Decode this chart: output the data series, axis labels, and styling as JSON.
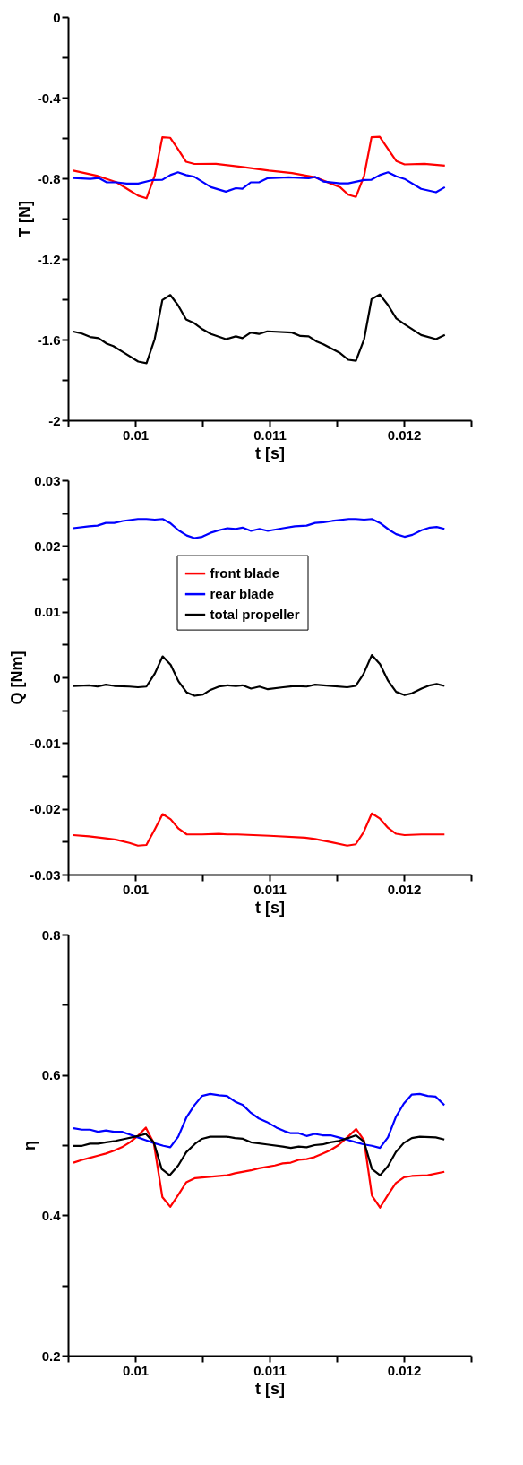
{
  "chart_data": [
    {
      "type": "line",
      "xlabel": "t [s]",
      "ylabel": "T [N]",
      "grid": false,
      "legend": false,
      "line_style": "solid",
      "xlim": [
        0.0095,
        0.0125
      ],
      "xticks": [
        {
          "value": 0.0095,
          "label": null
        },
        0.01,
        {
          "value": 0.0105,
          "label": null
        },
        0.011,
        {
          "value": 0.0115,
          "label": null
        },
        0.012,
        {
          "value": 0.0125,
          "label": null
        }
      ],
      "ylim": [
        -2,
        0
      ],
      "yticks": [
        -2,
        {
          "value": -1.8,
          "label": null
        },
        -1.6,
        {
          "value": -1.4,
          "label": null
        },
        -1.2,
        {
          "value": -1.0,
          "label": null
        },
        -0.8,
        {
          "value": -0.6,
          "label": null
        },
        -0.4,
        {
          "value": -0.2,
          "label": null
        },
        0
      ],
      "series": [
        {
          "color": "#ff0000",
          "x": [
            0.009539,
            0.009714,
            0.009862,
            0.009961,
            0.010022,
            0.010084,
            0.010145,
            0.010202,
            0.010261,
            0.010318,
            0.010379,
            0.010441,
            0.010601,
            0.010798,
            0.010995,
            0.011167,
            0.01134,
            0.011525,
            0.011586,
            0.011643,
            0.011704,
            0.011759,
            0.01182,
            0.011882,
            0.011943,
            0.012005,
            0.012153,
            0.012305
          ],
          "values": [
            -0.762,
            -0.787,
            -0.82,
            -0.861,
            -0.886,
            -0.899,
            -0.787,
            -0.596,
            -0.599,
            -0.655,
            -0.718,
            -0.729,
            -0.728,
            -0.744,
            -0.762,
            -0.774,
            -0.795,
            -0.844,
            -0.881,
            -0.892,
            -0.787,
            -0.596,
            -0.594,
            -0.655,
            -0.714,
            -0.731,
            -0.728,
            -0.737
          ]
        },
        {
          "color": "#0000ff",
          "x": [
            0.009539,
            0.009665,
            0.009727,
            0.009788,
            0.009862,
            0.009936,
            0.010022,
            0.010133,
            0.010202,
            0.010261,
            0.010318,
            0.010379,
            0.010441,
            0.010564,
            0.010675,
            0.010749,
            0.010798,
            0.01086,
            0.010921,
            0.010983,
            0.011143,
            0.011291,
            0.01134,
            0.011401,
            0.011525,
            0.011586,
            0.011648,
            0.011704,
            0.011759,
            0.01182,
            0.011882,
            0.011943,
            0.012005,
            0.012128,
            0.012239,
            0.012305
          ],
          "values": [
            -0.798,
            -0.803,
            -0.798,
            -0.82,
            -0.82,
            -0.826,
            -0.826,
            -0.808,
            -0.807,
            -0.784,
            -0.77,
            -0.784,
            -0.793,
            -0.844,
            -0.866,
            -0.849,
            -0.852,
            -0.82,
            -0.82,
            -0.8,
            -0.795,
            -0.8,
            -0.793,
            -0.816,
            -0.825,
            -0.825,
            -0.816,
            -0.808,
            -0.807,
            -0.784,
            -0.77,
            -0.79,
            -0.803,
            -0.852,
            -0.869,
            -0.844
          ]
        },
        {
          "color": "#000000",
          "x": [
            0.009539,
            0.009603,
            0.009665,
            0.009727,
            0.009788,
            0.009837,
            0.009911,
            0.010022,
            0.010084,
            0.010145,
            0.010202,
            0.010261,
            0.010318,
            0.010379,
            0.010441,
            0.010502,
            0.010564,
            0.010675,
            0.010749,
            0.010798,
            0.01086,
            0.010921,
            0.010983,
            0.011167,
            0.011229,
            0.011291,
            0.011352,
            0.011401,
            0.011525,
            0.011586,
            0.011643,
            0.011704,
            0.011759,
            0.01182,
            0.011882,
            0.011943,
            0.012005,
            0.012128,
            0.012239,
            0.012305
          ],
          "values": [
            -1.56,
            -1.57,
            -1.587,
            -1.593,
            -1.62,
            -1.632,
            -1.663,
            -1.709,
            -1.717,
            -1.597,
            -1.404,
            -1.379,
            -1.429,
            -1.5,
            -1.519,
            -1.549,
            -1.572,
            -1.598,
            -1.584,
            -1.593,
            -1.565,
            -1.572,
            -1.559,
            -1.565,
            -1.582,
            -1.584,
            -1.61,
            -1.623,
            -1.667,
            -1.7,
            -1.705,
            -1.598,
            -1.4,
            -1.376,
            -1.429,
            -1.495,
            -1.524,
            -1.577,
            -1.598,
            -1.577
          ]
        }
      ]
    },
    {
      "type": "line",
      "xlabel": "t [s]",
      "ylabel": "Q [Nm]",
      "grid": false,
      "legend": "top",
      "line_style": "solid",
      "xlim": [
        0.0095,
        0.0125
      ],
      "xticks": [
        {
          "value": 0.0095,
          "label": null
        },
        0.01,
        {
          "value": 0.0105,
          "label": null
        },
        0.011,
        {
          "value": 0.0115,
          "label": null
        },
        0.012,
        {
          "value": 0.0125,
          "label": null
        }
      ],
      "ylim": [
        -0.03,
        0.03
      ],
      "yticks": [
        -0.03,
        {
          "value": -0.025,
          "label": null
        },
        -0.02,
        {
          "value": -0.015,
          "label": null
        },
        -0.01,
        {
          "value": -0.005,
          "label": null
        },
        0,
        {
          "value": 0.005,
          "label": null
        },
        0.01,
        {
          "value": 0.015,
          "label": null
        },
        0.02,
        {
          "value": 0.025,
          "label": null
        },
        0.03
      ],
      "series": [
        {
          "name": "front blade",
          "color": "#ff0000",
          "x": [
            0.009538,
            0.009656,
            0.009781,
            0.009857,
            0.009957,
            0.01002,
            0.010083,
            0.010146,
            0.010204,
            0.010264,
            0.010322,
            0.010384,
            0.010498,
            0.010623,
            0.010686,
            0.010761,
            0.011,
            0.011264,
            0.011339,
            0.011465,
            0.011578,
            0.011641,
            0.011699,
            0.011761,
            0.011822,
            0.011882,
            0.011942,
            0.012005,
            0.012131,
            0.012302
          ],
          "values": [
            -0.024,
            -0.0242,
            -0.0245,
            -0.0247,
            -0.0252,
            -0.0256,
            -0.0255,
            -0.0231,
            -0.0208,
            -0.0216,
            -0.023,
            -0.0239,
            -0.0239,
            -0.0238,
            -0.0239,
            -0.0239,
            -0.0241,
            -0.0244,
            -0.0246,
            -0.0251,
            -0.0256,
            -0.0254,
            -0.0236,
            -0.0207,
            -0.0215,
            -0.0229,
            -0.0238,
            -0.024,
            -0.0239,
            -0.0239
          ]
        },
        {
          "name": "rear blade",
          "color": "#0000ff",
          "x": [
            0.009538,
            0.009656,
            0.009719,
            0.009781,
            0.009844,
            0.009907,
            0.01002,
            0.010083,
            0.010146,
            0.010204,
            0.010259,
            0.010322,
            0.010384,
            0.01044,
            0.010498,
            0.01056,
            0.010623,
            0.010686,
            0.010749,
            0.010799,
            0.010862,
            0.010925,
            0.010987,
            0.011101,
            0.011188,
            0.011276,
            0.011339,
            0.011402,
            0.011465,
            0.01159,
            0.011641,
            0.011704,
            0.011761,
            0.011822,
            0.011887,
            0.011942,
            0.012005,
            0.012063,
            0.012131,
            0.012194,
            0.012244,
            0.012302
          ],
          "values": [
            0.0227,
            0.023,
            0.0231,
            0.0235,
            0.0235,
            0.0238,
            0.0241,
            0.0241,
            0.024,
            0.0241,
            0.0235,
            0.0224,
            0.0216,
            0.0212,
            0.0214,
            0.022,
            0.0224,
            0.0227,
            0.0226,
            0.0228,
            0.0223,
            0.0226,
            0.0223,
            0.0227,
            0.023,
            0.0231,
            0.0235,
            0.0236,
            0.0238,
            0.0241,
            0.0241,
            0.024,
            0.0241,
            0.0235,
            0.0225,
            0.0218,
            0.0214,
            0.0217,
            0.0224,
            0.0228,
            0.0229,
            0.0226
          ]
        },
        {
          "name": "total propeller",
          "color": "#000000",
          "x": [
            0.009538,
            0.009656,
            0.009719,
            0.009781,
            0.009844,
            0.009957,
            0.01002,
            0.010083,
            0.010146,
            0.010204,
            0.010264,
            0.010322,
            0.010384,
            0.010442,
            0.010505,
            0.01056,
            0.010623,
            0.010686,
            0.010749,
            0.010799,
            0.010862,
            0.010925,
            0.010987,
            0.011101,
            0.011188,
            0.011276,
            0.011339,
            0.011465,
            0.011578,
            0.011641,
            0.011699,
            0.011761,
            0.011822,
            0.011882,
            0.011942,
            0.012005,
            0.012063,
            0.012131,
            0.012194,
            0.012244,
            0.012302
          ],
          "values": [
            -0.0013,
            -0.0012,
            -0.0014,
            -0.0011,
            -0.0013,
            -0.0014,
            -0.0015,
            -0.0014,
            0.0006,
            0.0032,
            0.0019,
            -0.0006,
            -0.0023,
            -0.0028,
            -0.0026,
            -0.0019,
            -0.0014,
            -0.0012,
            -0.0013,
            -0.0012,
            -0.0017,
            -0.0014,
            -0.0018,
            -0.0015,
            -0.0013,
            -0.0014,
            -0.0011,
            -0.0013,
            -0.0015,
            -0.0013,
            0.0005,
            0.0034,
            0.002,
            -0.0005,
            -0.0022,
            -0.0027,
            -0.0024,
            -0.0017,
            -0.0012,
            -0.001,
            -0.0013
          ]
        }
      ]
    },
    {
      "type": "line",
      "xlabel": "t [s]",
      "ylabel": "η",
      "grid": false,
      "legend": false,
      "line_style": "solid",
      "xlim": [
        0.0095,
        0.0125
      ],
      "xticks": [
        {
          "value": 0.0095,
          "label": null
        },
        0.01,
        {
          "value": 0.0105,
          "label": null
        },
        0.011,
        {
          "value": 0.0115,
          "label": null
        },
        0.012,
        {
          "value": 0.0125,
          "label": null
        }
      ],
      "ylim": [
        0.2,
        0.8
      ],
      "yticks": [
        0.2,
        {
          "value": 0.3,
          "label": null
        },
        0.4,
        {
          "value": 0.5,
          "label": null
        },
        0.6,
        {
          "value": 0.7,
          "label": null
        },
        0.8
      ],
      "series": [
        {
          "color": "#ff0000",
          "x": [
            0.00954,
            0.009604,
            0.009664,
            0.009723,
            0.009782,
            0.009841,
            0.009901,
            0.00996,
            0.010019,
            0.010079,
            0.010138,
            0.010202,
            0.010261,
            0.01032,
            0.01038,
            0.010446,
            0.010498,
            0.010683,
            0.010743,
            0.010861,
            0.01092,
            0.011039,
            0.011098,
            0.011158,
            0.011217,
            0.011276,
            0.011335,
            0.011395,
            0.011454,
            0.011513,
            0.011584,
            0.011644,
            0.011703,
            0.011762,
            0.011822,
            0.011881,
            0.01194,
            0.011999,
            0.012059,
            0.012177,
            0.012301
          ],
          "values": [
            0.475,
            0.479,
            0.482,
            0.485,
            0.488,
            0.492,
            0.497,
            0.504,
            0.513,
            0.525,
            0.503,
            0.426,
            0.412,
            0.429,
            0.447,
            0.453,
            0.454,
            0.457,
            0.46,
            0.464,
            0.467,
            0.471,
            0.474,
            0.475,
            0.479,
            0.48,
            0.483,
            0.488,
            0.493,
            0.5,
            0.512,
            0.523,
            0.507,
            0.428,
            0.411,
            0.429,
            0.446,
            0.454,
            0.456,
            0.457,
            0.462
          ]
        },
        {
          "color": "#0000ff",
          "x": [
            0.00954,
            0.009604,
            0.009664,
            0.009723,
            0.009782,
            0.009841,
            0.009901,
            0.00996,
            0.010019,
            0.010079,
            0.010138,
            0.010209,
            0.010261,
            0.01032,
            0.01038,
            0.010441,
            0.010498,
            0.010558,
            0.010624,
            0.010683,
            0.010743,
            0.010802,
            0.010861,
            0.01092,
            0.01098,
            0.011051,
            0.01111,
            0.011158,
            0.011217,
            0.011276,
            0.011335,
            0.011395,
            0.011454,
            0.011513,
            0.011573,
            0.011644,
            0.011703,
            0.011762,
            0.011822,
            0.011881,
            0.01194,
            0.011999,
            0.012059,
            0.012118,
            0.012177,
            0.012237,
            0.012301
          ],
          "values": [
            0.524,
            0.522,
            0.522,
            0.519,
            0.521,
            0.519,
            0.519,
            0.515,
            0.511,
            0.507,
            0.503,
            0.499,
            0.497,
            0.512,
            0.539,
            0.557,
            0.57,
            0.573,
            0.571,
            0.57,
            0.562,
            0.557,
            0.546,
            0.538,
            0.533,
            0.525,
            0.52,
            0.517,
            0.517,
            0.513,
            0.516,
            0.514,
            0.514,
            0.511,
            0.508,
            0.504,
            0.501,
            0.499,
            0.496,
            0.511,
            0.54,
            0.559,
            0.572,
            0.573,
            0.57,
            0.569,
            0.557
          ]
        },
        {
          "color": "#000000",
          "x": [
            0.00954,
            0.009604,
            0.009664,
            0.009723,
            0.009782,
            0.009853,
            0.009924,
            0.010019,
            0.010079,
            0.010138,
            0.010197,
            0.010256,
            0.01032,
            0.01038,
            0.010446,
            0.010498,
            0.010558,
            0.010683,
            0.010743,
            0.010802,
            0.010861,
            0.01098,
            0.011098,
            0.011158,
            0.011217,
            0.011276,
            0.011335,
            0.011395,
            0.011454,
            0.011513,
            0.011584,
            0.011644,
            0.011703,
            0.011762,
            0.011822,
            0.011881,
            0.01194,
            0.011999,
            0.012059,
            0.012118,
            0.012237,
            0.012301
          ],
          "values": [
            0.499,
            0.499,
            0.502,
            0.502,
            0.504,
            0.506,
            0.509,
            0.513,
            0.516,
            0.504,
            0.466,
            0.457,
            0.471,
            0.49,
            0.502,
            0.509,
            0.512,
            0.512,
            0.51,
            0.509,
            0.504,
            0.501,
            0.498,
            0.496,
            0.498,
            0.497,
            0.5,
            0.501,
            0.504,
            0.506,
            0.51,
            0.514,
            0.505,
            0.466,
            0.457,
            0.47,
            0.49,
            0.503,
            0.51,
            0.512,
            0.511,
            0.508
          ]
        }
      ]
    }
  ]
}
